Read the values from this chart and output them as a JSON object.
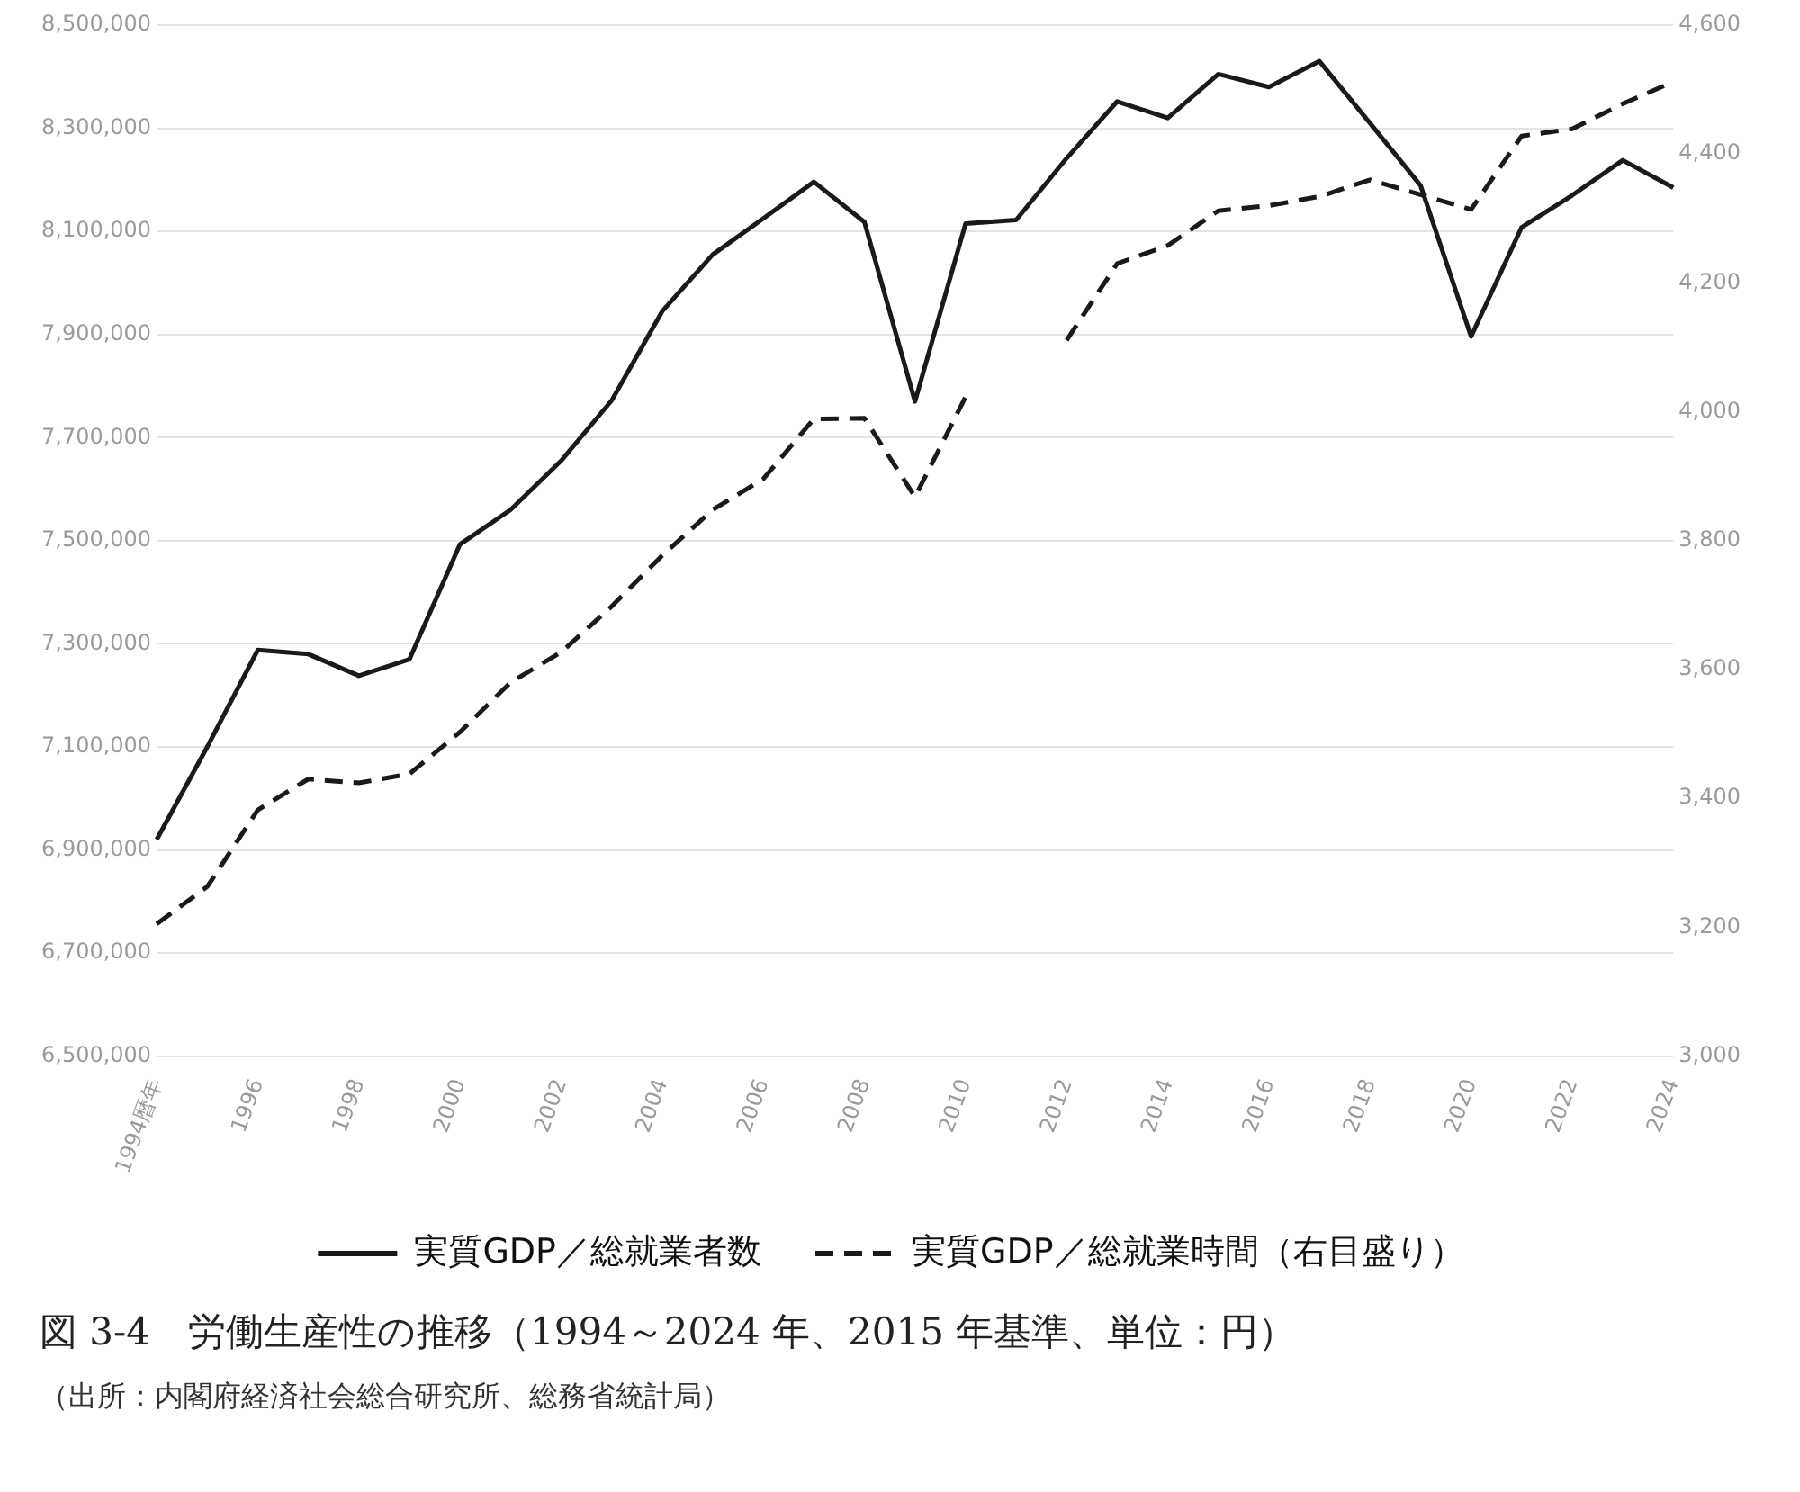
{
  "chart_data": {
    "type": "line",
    "title": "図 3-4　労働生産性の推移（1994～2024 年、2015 年基準、単位：円）",
    "annotations": [
      "（出所：内閣府経済社会総合研究所、総務省統計局）"
    ],
    "categories": [
      "1994暦年",
      null,
      "1996",
      null,
      "1998",
      null,
      "2000",
      null,
      "2002",
      null,
      "2004",
      null,
      "2006",
      null,
      "2008",
      null,
      "2010",
      null,
      "2012",
      null,
      "2014",
      null,
      "2016",
      null,
      "2018",
      null,
      "2020",
      null,
      "2022",
      null,
      "2024"
    ],
    "series": [
      {
        "name": "実質GDP／総就業者数",
        "color": "#1a1a1a",
        "line_style": "solid",
        "values": [
          6920000,
          7100000,
          7288000,
          7280000,
          7238000,
          7270000,
          7493000,
          7560000,
          7655000,
          7772000,
          7945000,
          8055000,
          8125000,
          8196000,
          8118000,
          7770000,
          8115000,
          8122000,
          8242000,
          8352000,
          8320000,
          8405000,
          8380000,
          8430000,
          8310000,
          8189000,
          7896000,
          8108000,
          8170000,
          8238000,
          8185000
        ]
      },
      {
        "name": "実質GDP／総就業時間（右目盛り）",
        "color": "#1a1a1a",
        "line_style": "dashed",
        "axis": "y2",
        "values": [
          3205,
          3263,
          3382,
          3430,
          3424,
          3438,
          3503,
          3580,
          3627,
          3698,
          3777,
          3848,
          3896,
          3989,
          3990,
          3868,
          4023,
          null,
          4111,
          4230,
          4258,
          4312,
          4320,
          4334,
          4360,
          4337,
          4314,
          4428,
          4439,
          4478,
          4512
        ]
      }
    ],
    "ylim": [
      6500000,
      8500000
    ],
    "yticks": [
      {
        "value": 6500000,
        "label": "6,500,000"
      },
      {
        "value": 6700000,
        "label": "6,700,000"
      },
      {
        "value": 6900000,
        "label": "6,900,000"
      },
      {
        "value": 7100000,
        "label": "7,100,000"
      },
      {
        "value": 7300000,
        "label": "7,300,000"
      },
      {
        "value": 7500000,
        "label": "7,500,000"
      },
      {
        "value": 7700000,
        "label": "7,700,000"
      },
      {
        "value": 7900000,
        "label": "7,900,000"
      },
      {
        "value": 8100000,
        "label": "8,100,000"
      },
      {
        "value": 8300000,
        "label": "8,300,000"
      },
      {
        "value": 8500000,
        "label": "8,500,000"
      }
    ],
    "y2lim": [
      3000,
      4600
    ],
    "y2ticks": [
      {
        "value": 3000,
        "label": "3,000"
      },
      {
        "value": 3200,
        "label": "3,200"
      },
      {
        "value": 3400,
        "label": "3,400"
      },
      {
        "value": 3600,
        "label": "3,600"
      },
      {
        "value": 3800,
        "label": "3,800"
      },
      {
        "value": 4000,
        "label": "4,000"
      },
      {
        "value": 4200,
        "label": "4,200"
      },
      {
        "value": 4400,
        "label": "4,400"
      },
      {
        "value": 4600,
        "label": "4,600"
      }
    ],
    "grid": "y",
    "legend": "bottom",
    "marker": "none"
  }
}
